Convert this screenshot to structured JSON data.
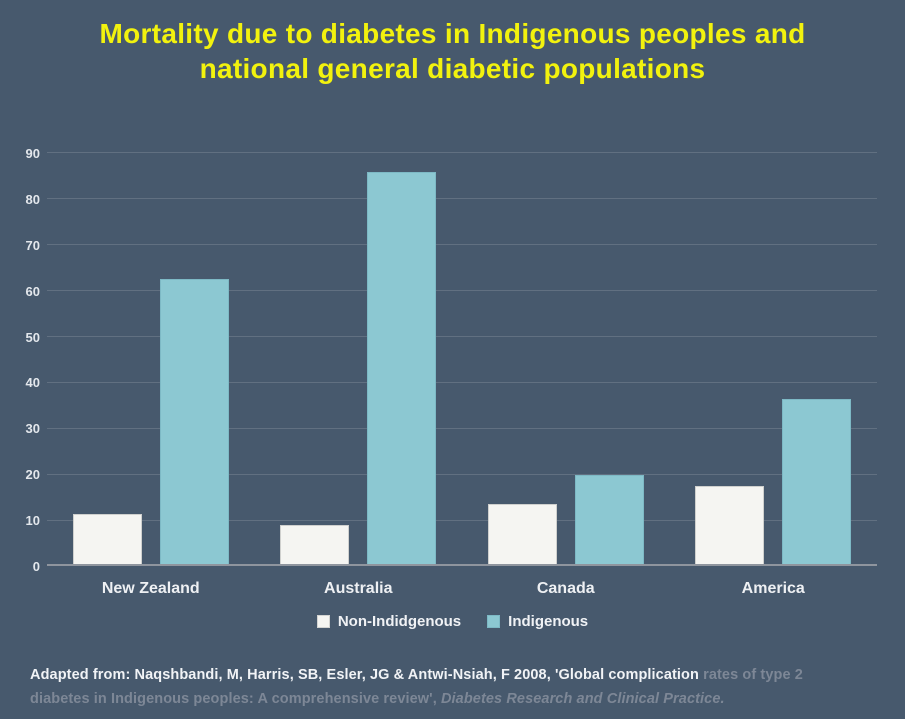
{
  "title": {
    "line1": "Mortality due to diabetes in Indigenous peoples and",
    "line2": "national general diabetic populations"
  },
  "colors": {
    "background": "#47596d",
    "title_text": "#f2f20e",
    "non_indigenous_bar": "#f5f5f2",
    "indigenous_bar": "#8cc8d2",
    "gridline": "rgba(255,255,255,0.14)",
    "axis_line": "#8f959e",
    "tick_label": "#e3e7ec",
    "caption_bright": "#f1f3f6",
    "caption_faded": "#7d8796"
  },
  "chart_data": {
    "type": "bar",
    "categories": [
      "New Zealand",
      "Australia",
      "Canada",
      "America"
    ],
    "series": [
      {
        "name": "Non-Indidgenous",
        "color": "#f5f5f2",
        "values": [
          11,
          8.5,
          13,
          17
        ]
      },
      {
        "name": "Indigenous",
        "color": "#8cc8d2",
        "values": [
          62,
          85.5,
          19.5,
          36
        ]
      }
    ],
    "title": "Mortality due to diabetes in Indigenous peoples and national general diabetic populations",
    "xlabel": "",
    "ylabel": "",
    "ylim": [
      0,
      90
    ],
    "yticks": [
      0,
      10,
      20,
      30,
      40,
      50,
      60,
      70,
      80,
      90
    ],
    "grid": true,
    "legend_position": "bottom"
  },
  "legend": {
    "items": [
      {
        "label": "Non-Indidgenous",
        "color": "#f5f5f2",
        "css": "non-ind"
      },
      {
        "label": "Indigenous",
        "color": "#8cc8d2",
        "css": "ind"
      }
    ]
  },
  "caption": {
    "lines": [
      [
        {
          "text": "Adapted from: Naqshbandi, M, Harris, SB, Esler, JG & Antwi-Nsiah, F 2008, 'Global complication ",
          "style": "bright"
        },
        {
          "text": "rates of type 2",
          "style": "faded"
        }
      ],
      [
        {
          "text": "diabetes in Indigenous peoples: A comprehensive review', ",
          "style": "faded"
        },
        {
          "text": "Diabetes Research and Clinical Practice.",
          "style": "faded-italic"
        }
      ]
    ]
  }
}
